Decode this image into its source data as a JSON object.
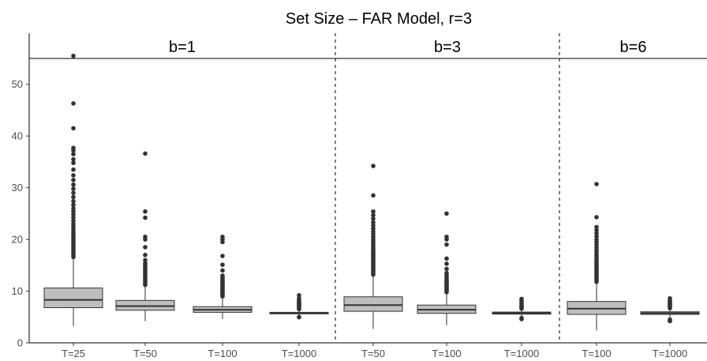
{
  "chart_data": {
    "type": "box",
    "title": "Set Size – FAR Model, r=3",
    "xlabel": "",
    "ylabel": "",
    "ylim": [
      0,
      55
    ],
    "yticks": [
      0,
      10,
      20,
      30,
      40,
      50
    ],
    "grid": false,
    "legend": "none",
    "facets": [
      {
        "label": "b=1",
        "boxes": [
          {
            "category": "T=25",
            "whisker_low": 3.2,
            "q1": 6.8,
            "median": 8.3,
            "q3": 10.6,
            "whisker_high": 16.4,
            "outliers": [
              16.6,
              17.0,
              17.4,
              17.8,
              18.2,
              18.6,
              19.0,
              19.4,
              19.8,
              20.2,
              20.6,
              21.0,
              21.5,
              22.0,
              22.5,
              23.0,
              23.6,
              24.2,
              24.8,
              25.4,
              26.0,
              26.7,
              27.4,
              28.2,
              29.0,
              29.8,
              30.6,
              31.5,
              32.4,
              33.5,
              34.8,
              35.5,
              36.5,
              37.2,
              37.7,
              41.5,
              46.3,
              55.5
            ]
          },
          {
            "category": "T=50",
            "whisker_low": 4.2,
            "q1": 6.3,
            "median": 7.1,
            "q3": 8.2,
            "whisker_high": 11.0,
            "outliers": [
              11.2,
              11.5,
              11.8,
              12.1,
              12.4,
              12.7,
              13.0,
              13.3,
              13.6,
              13.9,
              14.2,
              14.5,
              14.8,
              15.1,
              15.4,
              16.0,
              17.0,
              18.5,
              20.0,
              20.5,
              24.2,
              25.4,
              36.6
            ]
          },
          {
            "category": "T=100",
            "whisker_low": 4.6,
            "q1": 5.9,
            "median": 6.4,
            "q3": 7.0,
            "whisker_high": 8.8,
            "outliers": [
              9.0,
              9.2,
              9.4,
              9.6,
              9.8,
              10.0,
              10.2,
              10.4,
              10.6,
              10.8,
              11.0,
              11.2,
              11.4,
              11.6,
              11.8,
              12.0,
              12.3,
              12.6,
              13.0,
              14.0,
              15.1,
              16.8,
              19.5,
              20.0,
              20.5
            ]
          },
          {
            "category": "T=1000",
            "whisker_low": 5.1,
            "q1": 5.6,
            "median": 5.75,
            "q3": 5.9,
            "whisker_high": 6.3,
            "outliers": [
              5.0,
              4.95,
              6.5,
              6.7,
              6.9,
              7.1,
              7.3,
              7.5,
              7.7,
              7.9,
              8.2,
              8.6,
              9.2
            ]
          }
        ]
      },
      {
        "label": "b=3",
        "boxes": [
          {
            "category": "T=50",
            "whisker_low": 2.7,
            "q1": 6.1,
            "median": 7.3,
            "q3": 8.9,
            "whisker_high": 13.0,
            "outliers": [
              13.2,
              13.5,
              13.8,
              14.1,
              14.4,
              14.7,
              15.0,
              15.3,
              15.6,
              15.9,
              16.2,
              16.5,
              16.8,
              17.1,
              17.4,
              17.7,
              18.0,
              18.4,
              18.8,
              19.2,
              19.6,
              20.0,
              20.5,
              21.0,
              21.5,
              22.1,
              22.7,
              23.3,
              24.0,
              24.7,
              25.4,
              28.5,
              34.2
            ]
          },
          {
            "category": "T=100",
            "whisker_low": 3.4,
            "q1": 5.7,
            "median": 6.4,
            "q3": 7.3,
            "whisker_high": 9.6,
            "outliers": [
              9.8,
              10.0,
              10.2,
              10.4,
              10.6,
              10.8,
              11.0,
              11.2,
              11.4,
              11.6,
              11.8,
              12.0,
              12.3,
              12.6,
              13.0,
              13.5,
              14.3,
              15.3,
              16.3,
              19.0,
              20.0,
              20.5,
              25.0
            ]
          },
          {
            "category": "T=1000",
            "whisker_low": 5.0,
            "q1": 5.55,
            "median": 5.75,
            "q3": 5.95,
            "whisker_high": 6.4,
            "outliers": [
              4.8,
              4.6,
              6.6,
              6.8,
              7.0,
              7.2,
              7.5,
              7.8,
              8.2,
              8.5
            ]
          }
        ]
      },
      {
        "label": "b=6",
        "boxes": [
          {
            "category": "T=100",
            "whisker_low": 2.4,
            "q1": 5.5,
            "median": 6.6,
            "q3": 8.0,
            "whisker_high": 11.6,
            "outliers": [
              11.8,
              12.1,
              12.4,
              12.7,
              13.0,
              13.3,
              13.6,
              13.9,
              14.2,
              14.5,
              14.8,
              15.1,
              15.4,
              15.7,
              16.0,
              16.4,
              16.8,
              17.2,
              17.6,
              18.0,
              18.5,
              19.0,
              19.5,
              20.0,
              20.6,
              21.2,
              21.8,
              22.4,
              24.3,
              30.7
            ]
          },
          {
            "category": "T=1000",
            "whisker_low": 4.8,
            "q1": 5.5,
            "median": 5.75,
            "q3": 6.0,
            "whisker_high": 6.5,
            "outliers": [
              4.5,
              4.3,
              4.2,
              6.7,
              6.9,
              7.1,
              7.3,
              7.5,
              7.7,
              7.9,
              8.2,
              8.6
            ]
          }
        ]
      }
    ]
  }
}
